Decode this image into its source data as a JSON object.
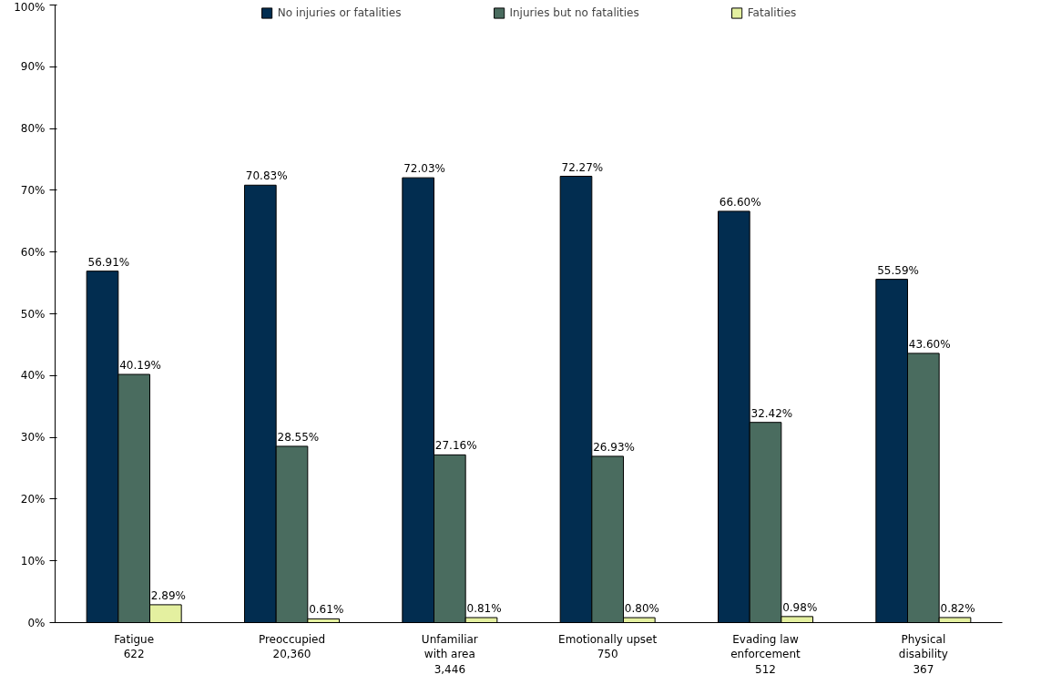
{
  "chart_data": {
    "type": "bar",
    "categories": [
      "Fatigue\n622",
      "Preoccupied\n20,360",
      "Unfamiliar\nwith area\n3,446",
      "Emotionally upset\n750",
      "Evading law\nenforcement\n512",
      "Physical\ndisability\n367"
    ],
    "series": [
      {
        "name": "No injuries or fatalities",
        "color": "#022d50",
        "values": [
          56.91,
          70.83,
          72.03,
          72.27,
          66.6,
          55.59
        ],
        "value_labels": [
          "56.91%",
          "70.83%",
          "72.03%",
          "72.27%",
          "66.60%",
          "55.59%"
        ]
      },
      {
        "name": "Injuries but no fatalities",
        "color": "#4a6c5f",
        "values": [
          40.19,
          28.55,
          27.16,
          26.93,
          32.42,
          43.6
        ],
        "value_labels": [
          "40.19%",
          "28.55%",
          "27.16%",
          "26.93%",
          "32.42%",
          "43.60%"
        ]
      },
      {
        "name": "Fatalities",
        "color": "#e4f0a0",
        "values": [
          2.89,
          0.61,
          0.81,
          0.8,
          0.98,
          0.82
        ],
        "value_labels": [
          "2.89%",
          "0.61%",
          "0.81%",
          "0.80%",
          "0.98%",
          "0.82%"
        ]
      }
    ],
    "ylim": [
      0,
      100
    ],
    "yticks": [
      {
        "value": 0,
        "label": "0%"
      },
      {
        "value": 10,
        "label": "10%"
      },
      {
        "value": 20,
        "label": "20%"
      },
      {
        "value": 30,
        "label": "30%"
      },
      {
        "value": 40,
        "label": "40%"
      },
      {
        "value": 50,
        "label": "50%"
      },
      {
        "value": 60,
        "label": "60%"
      },
      {
        "value": 70,
        "label": "70%"
      },
      {
        "value": 80,
        "label": "80%"
      },
      {
        "value": 90,
        "label": "90%"
      },
      {
        "value": 100,
        "label": "100%"
      }
    ],
    "legend": "top",
    "grid": false
  }
}
